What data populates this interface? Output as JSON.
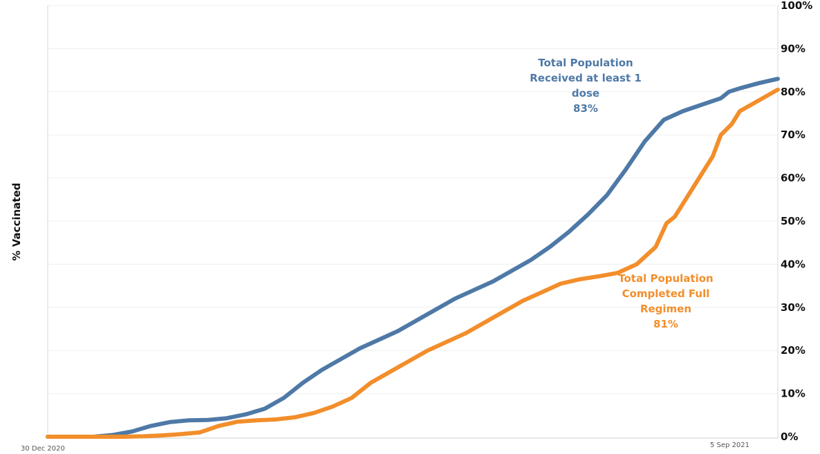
{
  "chart_data": {
    "type": "line",
    "title": "",
    "ylabel": "% Vaccinated",
    "xlabel": "",
    "x_ticks": [
      "30 Dec 2020",
      "5 Sep 2021"
    ],
    "y_ticks": [
      "0%",
      "10%",
      "20%",
      "30%",
      "40%",
      "50%",
      "60%",
      "70%",
      "80%",
      "90%",
      "100%"
    ],
    "ylim": [
      0,
      100
    ],
    "xlim": [
      "2020-12-30",
      "2021-09-25"
    ],
    "grid": "horizontal",
    "series": [
      {
        "color": "#4e79a7",
        "points": [
          [
            "2020-12-30",
            0
          ],
          [
            "2021-01-16",
            0
          ],
          [
            "2021-01-23",
            0.4
          ],
          [
            "2021-01-30",
            1.2
          ],
          [
            "2021-02-06",
            2.5
          ],
          [
            "2021-02-13",
            3.4
          ],
          [
            "2021-02-20",
            3.8
          ],
          [
            "2021-02-27",
            3.9
          ],
          [
            "2021-03-06",
            4.3
          ],
          [
            "2021-03-13",
            5.2
          ],
          [
            "2021-03-20",
            6.5
          ],
          [
            "2021-03-27",
            9.0
          ],
          [
            "2021-04-03",
            12.5
          ],
          [
            "2021-04-10",
            15.5
          ],
          [
            "2021-04-17",
            18.0
          ],
          [
            "2021-04-24",
            20.5
          ],
          [
            "2021-05-01",
            22.5
          ],
          [
            "2021-05-08",
            24.5
          ],
          [
            "2021-05-15",
            27.0
          ],
          [
            "2021-05-22",
            29.5
          ],
          [
            "2021-05-29",
            32.0
          ],
          [
            "2021-06-05",
            34.0
          ],
          [
            "2021-06-12",
            36.0
          ],
          [
            "2021-06-19",
            38.5
          ],
          [
            "2021-06-26",
            41.0
          ],
          [
            "2021-07-03",
            44.0
          ],
          [
            "2021-07-10",
            47.5
          ],
          [
            "2021-07-17",
            51.5
          ],
          [
            "2021-07-24",
            56.0
          ],
          [
            "2021-07-31",
            62.0
          ],
          [
            "2021-08-07",
            68.5
          ],
          [
            "2021-08-14",
            73.5
          ],
          [
            "2021-08-21",
            75.5
          ],
          [
            "2021-08-28",
            77.0
          ],
          [
            "2021-09-04",
            78.5
          ],
          [
            "2021-09-07",
            80.0
          ],
          [
            "2021-09-11",
            80.8
          ],
          [
            "2021-09-18",
            82.0
          ],
          [
            "2021-09-25",
            83.0
          ]
        ]
      },
      {
        "color": "#f28e2b",
        "points": [
          [
            "2020-12-30",
            0
          ],
          [
            "2021-01-27",
            0
          ],
          [
            "2021-02-03",
            0.1
          ],
          [
            "2021-02-10",
            0.3
          ],
          [
            "2021-02-17",
            0.6
          ],
          [
            "2021-02-24",
            1.0
          ],
          [
            "2021-03-03",
            2.5
          ],
          [
            "2021-03-10",
            3.5
          ],
          [
            "2021-03-17",
            3.8
          ],
          [
            "2021-03-24",
            4.0
          ],
          [
            "2021-03-31",
            4.5
          ],
          [
            "2021-04-07",
            5.5
          ],
          [
            "2021-04-14",
            7.0
          ],
          [
            "2021-04-21",
            9.0
          ],
          [
            "2021-04-28",
            12.5
          ],
          [
            "2021-05-05",
            15.0
          ],
          [
            "2021-05-12",
            17.5
          ],
          [
            "2021-05-19",
            20.0
          ],
          [
            "2021-05-26",
            22.0
          ],
          [
            "2021-06-02",
            24.0
          ],
          [
            "2021-06-09",
            26.5
          ],
          [
            "2021-06-16",
            29.0
          ],
          [
            "2021-06-23",
            31.5
          ],
          [
            "2021-06-30",
            33.5
          ],
          [
            "2021-07-07",
            35.5
          ],
          [
            "2021-07-14",
            36.5
          ],
          [
            "2021-07-21",
            37.2
          ],
          [
            "2021-07-28",
            38.0
          ],
          [
            "2021-08-04",
            40.0
          ],
          [
            "2021-08-11",
            44.0
          ],
          [
            "2021-08-15",
            49.5
          ],
          [
            "2021-08-18",
            51.0
          ],
          [
            "2021-08-25",
            58.0
          ],
          [
            "2021-09-01",
            65.0
          ],
          [
            "2021-09-04",
            70.0
          ],
          [
            "2021-09-08",
            72.5
          ],
          [
            "2021-09-11",
            75.5
          ],
          [
            "2021-09-18",
            78.0
          ],
          [
            "2021-09-25",
            80.5
          ]
        ]
      }
    ],
    "annotations": [
      {
        "lines": [
          "Total Population",
          "Received at least 1",
          "dose",
          "83%"
        ],
        "color": "#4e79a7"
      },
      {
        "lines": [
          "Total Population",
          "Completed Full",
          "Regimen",
          "81%"
        ],
        "color": "#f28e2b"
      }
    ]
  }
}
